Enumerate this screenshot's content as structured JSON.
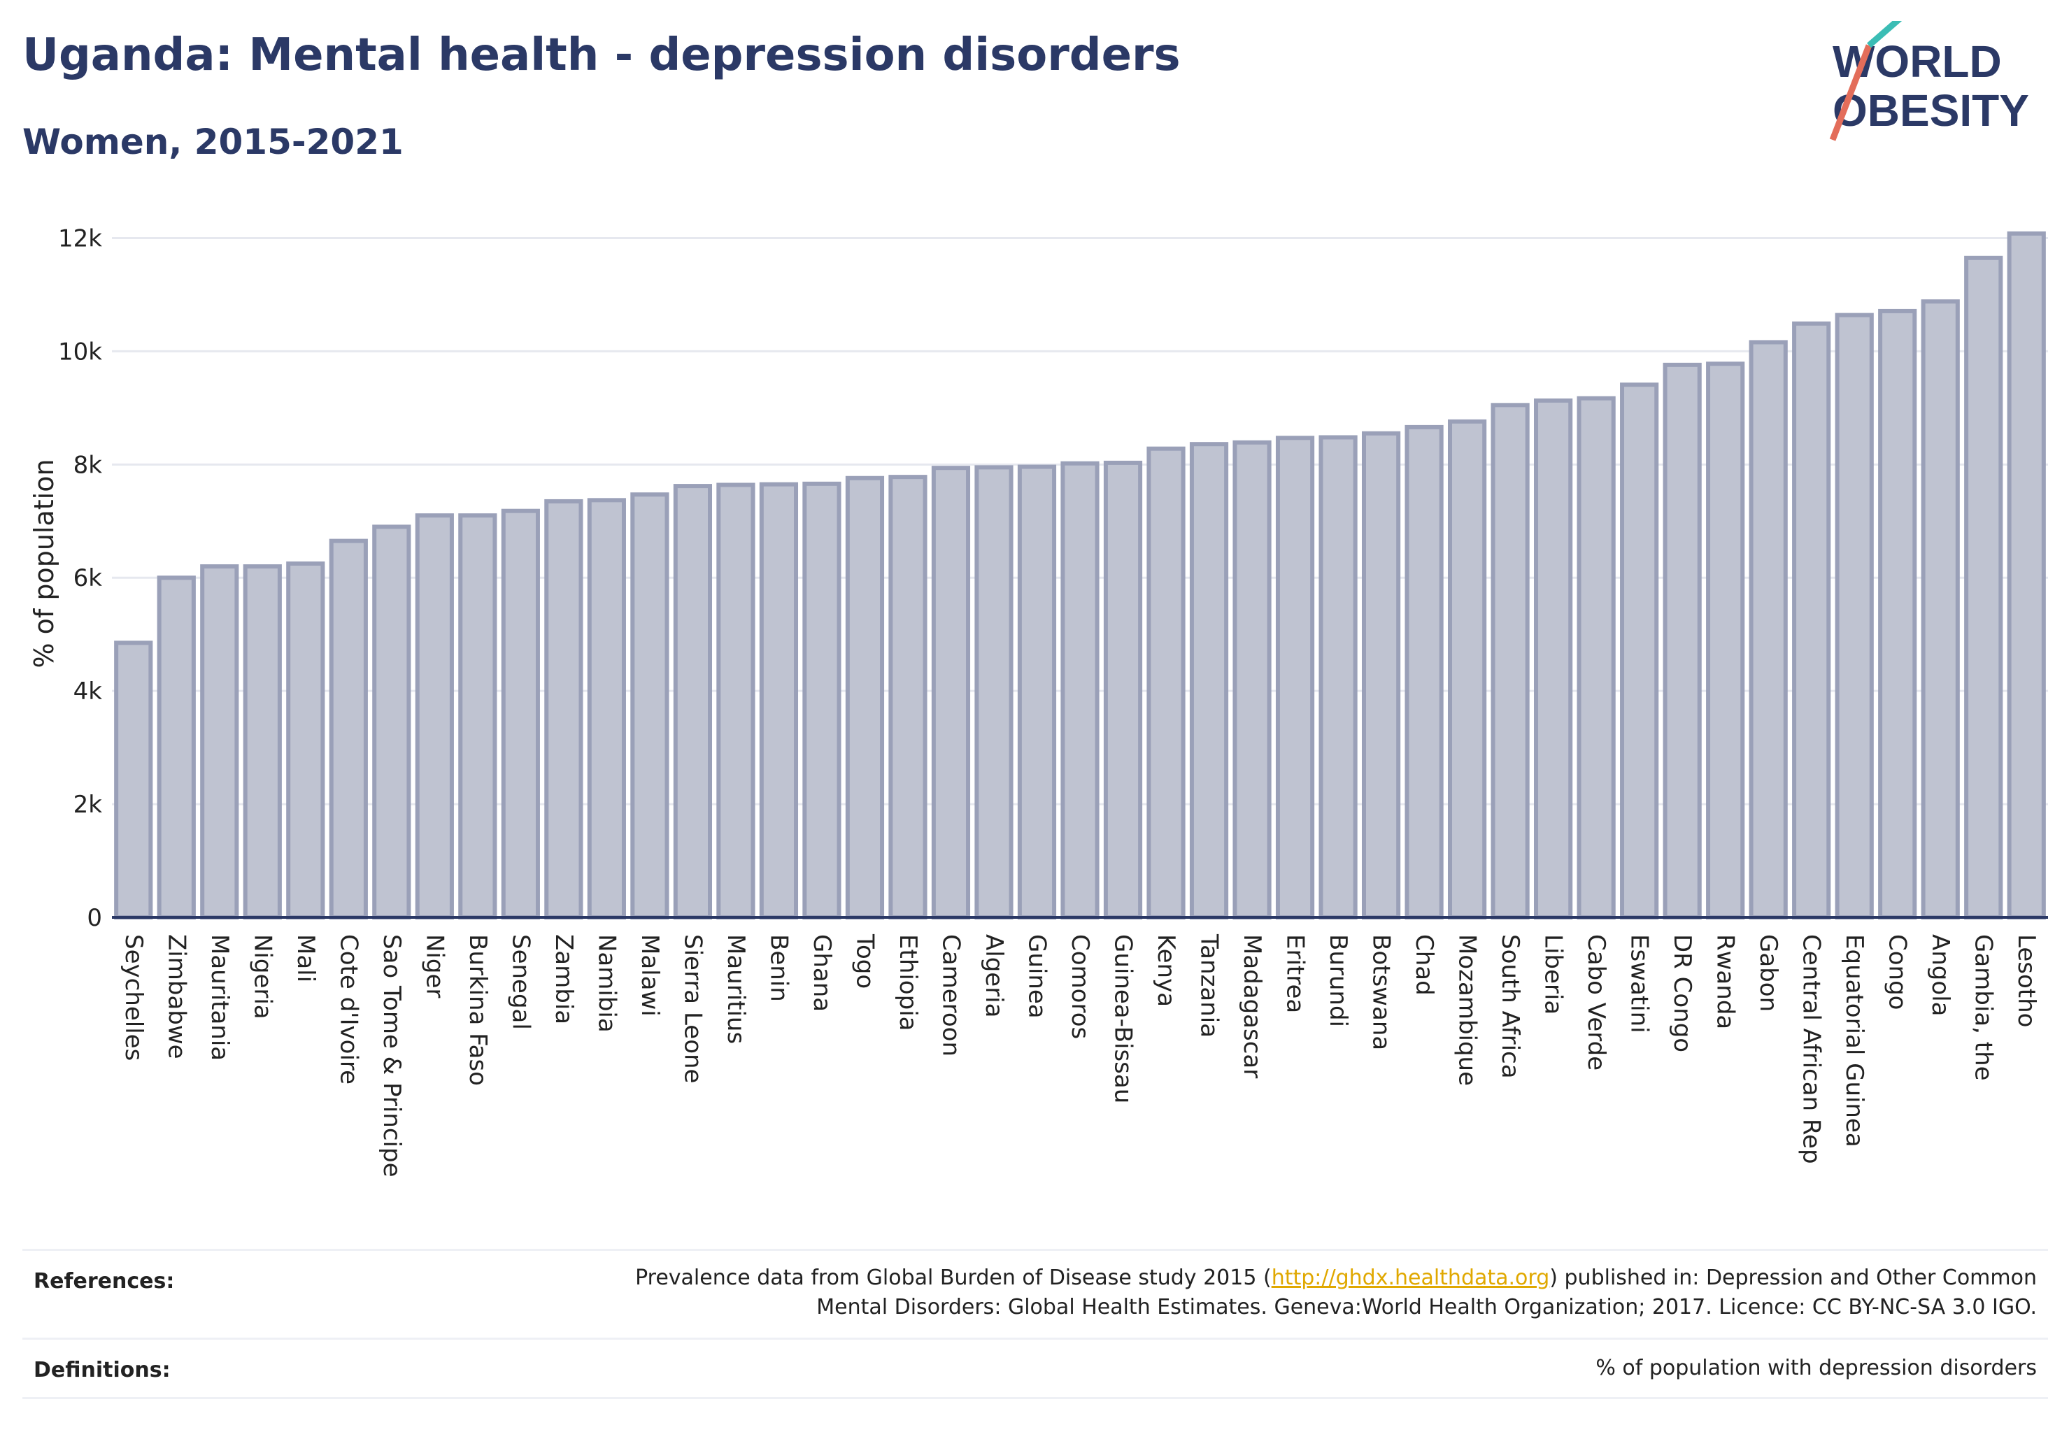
{
  "header": {
    "title": "Uganda: Mental health - depression disorders",
    "subtitle": "Women, 2015-2021"
  },
  "logo": {
    "line1": "WORLD",
    "line2": "OBESITY"
  },
  "chart_data": {
    "type": "bar",
    "title": "Uganda: Mental health - depression disorders",
    "subtitle": "Women, 2015-2021",
    "xlabel": "",
    "ylabel": "% of population",
    "ylim": [
      0,
      12500
    ],
    "yticks": [
      0,
      2000,
      4000,
      6000,
      8000,
      10000,
      12000
    ],
    "ytick_labels": [
      "0",
      "2k",
      "4k",
      "6k",
      "8k",
      "10k",
      "12k"
    ],
    "grid": true,
    "bar_color": "#bfc3d1",
    "bar_edge_color": "#9aa0b8",
    "categories": [
      "Seychelles",
      "Zimbabwe",
      "Mauritania",
      "Nigeria",
      "Mali",
      "Cote d'Ivoire",
      "Sao Tome & Principe",
      "Niger",
      "Burkina Faso",
      "Senegal",
      "Zambia",
      "Namibia",
      "Malawi",
      "Sierra Leone",
      "Mauritius",
      "Benin",
      "Ghana",
      "Togo",
      "Ethiopia",
      "Cameroon",
      "Algeria",
      "Guinea",
      "Comoros",
      "Guinea-Bissau",
      "Kenya",
      "Tanzania",
      "Madagascar",
      "Eritrea",
      "Burundi",
      "Botswana",
      "Chad",
      "Mozambique",
      "South Africa",
      "Liberia",
      "Cabo Verde",
      "Eswatini",
      "DR Congo",
      "Rwanda",
      "Gabon",
      "Central African Rep",
      "Equatorial Guinea",
      "Congo",
      "Angola",
      "Gambia, the",
      "Lesotho"
    ],
    "values": [
      4850,
      6000,
      6200,
      6200,
      6250,
      6650,
      6900,
      7100,
      7100,
      7180,
      7350,
      7370,
      7470,
      7620,
      7640,
      7650,
      7660,
      7760,
      7780,
      7940,
      7950,
      7960,
      8020,
      8030,
      8280,
      8360,
      8390,
      8470,
      8480,
      8550,
      8660,
      8760,
      9050,
      9130,
      9170,
      9410,
      9760,
      9780,
      10160,
      10490,
      10640,
      10710,
      10880,
      11650,
      12080
    ]
  },
  "references": {
    "label": "References:",
    "text_before": "Prevalence data from Global Burden of Disease study 2015 (",
    "link": "http://ghdx.healthdata.org",
    "text_after": ") published in: Depression and Other Common",
    "line2": "Mental Disorders: Global Health Estimates. Geneva:World Health Organization; 2017. Licence: CC BY-NC-SA 3.0 IGO."
  },
  "definitions": {
    "label": "Definitions:",
    "text": "% of population with depression disorders"
  }
}
